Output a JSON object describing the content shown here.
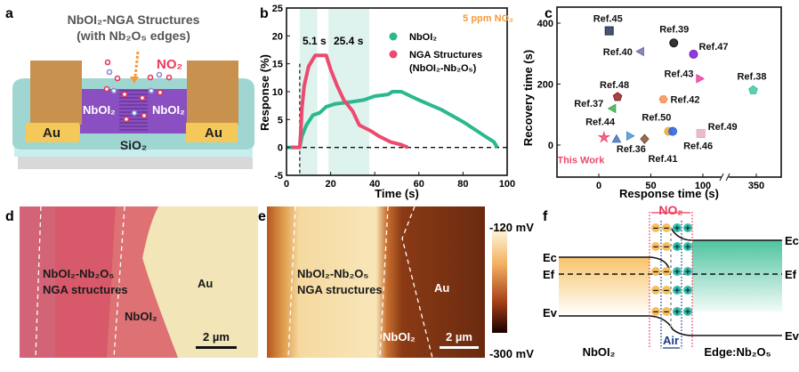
{
  "panel_labels": {
    "a": "a",
    "b": "b",
    "c": "c",
    "d": "d",
    "e": "e",
    "f": "f"
  },
  "panel_a": {
    "title_line1": "NbOI₂-NGA Structures",
    "title_line2": "(with Nb₂O₅ edges)",
    "gas": "NO₂",
    "electrode_left": "Au",
    "electrode_right": "Au",
    "channel_left": "NbOI₂",
    "channel_right": "NbOI₂",
    "substrate": "SiO₂"
  },
  "chart_data": [
    {
      "type": "line",
      "xlabel": "Time (s)",
      "ylabel": "Response (%)",
      "xlim": [
        0,
        100
      ],
      "ylim": [
        -5,
        25
      ],
      "xticks": [
        "0",
        "20",
        "40",
        "60",
        "80",
        "100"
      ],
      "yticks": [
        "-5",
        "0",
        "5",
        "10",
        "15",
        "20",
        "25"
      ],
      "annotation_gas": "5 ppm NO₂",
      "response_time_label": "5.1 s",
      "recovery_time_label": "25.4 s",
      "shaded_regions": [
        [
          6,
          14
        ],
        [
          19,
          37.5
        ]
      ],
      "legend_placement": "top-right",
      "series": [
        {
          "name": "NbOI₂",
          "color": "#2bb88f",
          "x": [
            0,
            6,
            7,
            9,
            12,
            15,
            18,
            22,
            30,
            35,
            40,
            46,
            48,
            52,
            60,
            70,
            80,
            90,
            94,
            95.5
          ],
          "y": [
            0,
            0,
            2,
            4,
            5.8,
            6.2,
            7.3,
            7.8,
            8.2,
            8.5,
            9.2,
            9.5,
            10,
            10,
            8.5,
            6.8,
            4.6,
            2,
            1,
            0
          ]
        },
        {
          "name": "NGA Structures",
          "name_line2": "(NbOI₂-Nb₂O₅)",
          "color": "#ec4a6f",
          "x": [
            2,
            6,
            6.5,
            7,
            8,
            10,
            13,
            18,
            20,
            23,
            26,
            30,
            33,
            38,
            42,
            47,
            52,
            55
          ],
          "y": [
            0,
            0,
            3,
            7,
            11,
            14.5,
            16.5,
            16.5,
            14,
            11,
            8.5,
            6.5,
            4,
            3,
            2,
            1,
            0.5,
            0
          ]
        }
      ]
    },
    {
      "type": "scatter",
      "xlabel": "Response time (s)",
      "ylabel": "Recovery time (s)",
      "ylim": [
        -100,
        450
      ],
      "xticks": [
        "0",
        "50",
        "100",
        "350"
      ],
      "yticks": [
        "0",
        "200",
        "400"
      ],
      "x_axis_break": [
        110,
        330
      ],
      "points": [
        {
          "label": "This Work",
          "x": 5,
          "y": 25,
          "marker": "star",
          "color": "#ec4a6f"
        },
        {
          "label": "Ref.36",
          "x": 17,
          "y": 20,
          "marker": "triangle-up",
          "color": "#3b6fb0"
        },
        {
          "label": "Ref.44",
          "x": 30,
          "y": 30,
          "marker": "triangle-right",
          "color": "#4a8fc9"
        },
        {
          "label": "Ref.41",
          "x": 44,
          "y": 20,
          "marker": "diamond",
          "color": "#7a4a2a"
        },
        {
          "label": "Ref.50",
          "x": 67,
          "y": 45,
          "marker": "circle",
          "color": "#e8a92a"
        },
        {
          "label": "Ref.46",
          "x": 71,
          "y": 45,
          "marker": "circle",
          "color": "#2a5fe0"
        },
        {
          "label": "Ref.49",
          "x": 98,
          "y": 38,
          "marker": "square",
          "color": "#e8a9bd"
        },
        {
          "label": "Ref.37",
          "x": 13,
          "y": 120,
          "marker": "triangle-left",
          "color": "#3aaa4a"
        },
        {
          "label": "Ref.48",
          "x": 18,
          "y": 158,
          "marker": "pentagon",
          "color": "#8a1a1a"
        },
        {
          "label": "Ref.42",
          "x": 62,
          "y": 150,
          "marker": "hexagon",
          "color": "#f58a4a"
        },
        {
          "label": "Ref.43",
          "x": 97,
          "y": 218,
          "marker": "triangle-right",
          "color": "#e83aa0"
        },
        {
          "label": "Ref.38",
          "x": 347,
          "y": 180,
          "marker": "pentagon",
          "color": "#3ac0a0"
        },
        {
          "label": "Ref.40",
          "x": 40,
          "y": 307,
          "marker": "triangle-left",
          "color": "#6a6aaa"
        },
        {
          "label": "Ref.39",
          "x": 72,
          "y": 335,
          "marker": "circle",
          "color": "#111111"
        },
        {
          "label": "Ref.47",
          "x": 91,
          "y": 298,
          "marker": "circle",
          "color": "#7a1ad0"
        },
        {
          "label": "Ref.45",
          "x": 10,
          "y": 375,
          "marker": "square",
          "color": "#1a2a4a"
        }
      ]
    }
  ],
  "panel_d": {
    "region_label_line1": "NbOI₂-Nb₂O₅",
    "region_label_line2": "NGA structures",
    "au_label": "Au",
    "nboi_label": "NbOI₂",
    "scalebar": "2 µm"
  },
  "panel_e": {
    "region_label_line1": "NbOI₂-Nb₂O₅",
    "region_label_line2": "NGA structures",
    "au_label": "Au",
    "nboi_label": "NbOI₂",
    "scalebar": "2 µm",
    "colorbar_max": "-120 mV",
    "colorbar_min": "-300 mV"
  },
  "panel_f": {
    "gas": "NO₂",
    "air": "Air",
    "left_material": "NbOI₂",
    "right_material": "Edge:Nb₂O₅",
    "ec_left": "Ec",
    "ef_left": "Ef",
    "ev_left": "Ev",
    "ec_right": "Ec",
    "ef_right": "Ef",
    "ev_right": "Ev",
    "minus": "−",
    "plus": "+"
  }
}
